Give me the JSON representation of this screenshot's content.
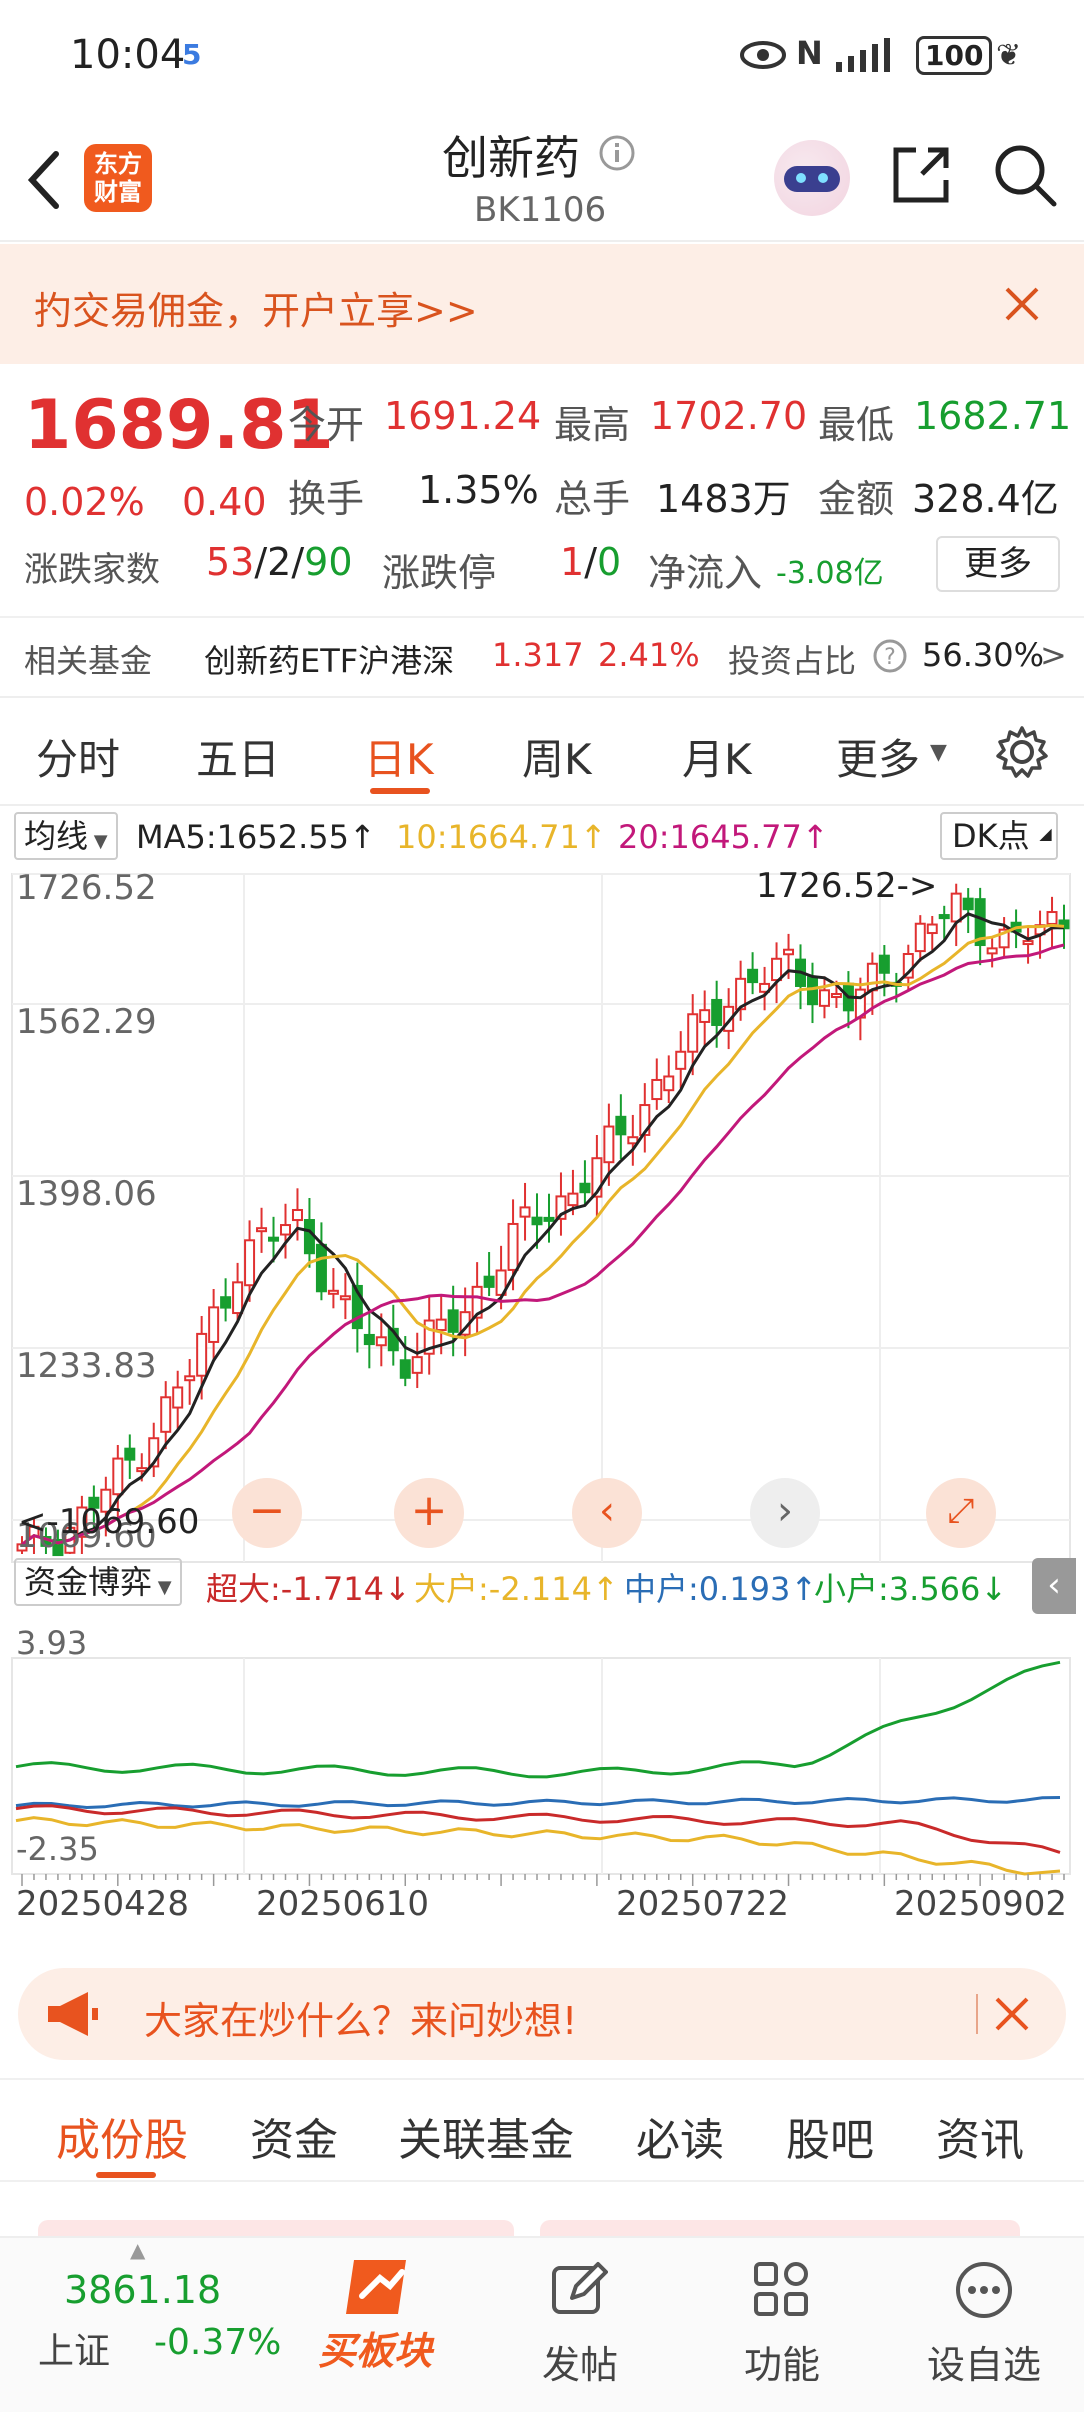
{
  "status_bar": {
    "time": "10:04",
    "battery": "100"
  },
  "header": {
    "logo_line1": "东方",
    "logo_line2": "财富",
    "title": "创新药",
    "code": "BK1106"
  },
  "banner": {
    "text": "扚交易佣金，开户立享>>"
  },
  "quote": {
    "price": "1689.81",
    "change_pct": "0.02%",
    "change": "0.40",
    "open_label": "今开",
    "open": "1691.24",
    "high_label": "最高",
    "high": "1702.70",
    "low_label": "最低",
    "low": "1682.71",
    "turnover_label": "换手",
    "turnover": "1.35%",
    "volume_label": "总手",
    "volume": "1483万",
    "amount_label": "金额",
    "amount": "328.4亿",
    "breadth_label": "涨跌家数",
    "up": "53",
    "sep1": "/",
    "flat": "2",
    "sep2": "/",
    "down": "90",
    "limit_label": "涨跌停",
    "limit_up": "1",
    "sep3": "/",
    "limit_down": "0",
    "inflow_label": "净流入",
    "inflow": "-3.08亿",
    "more_button": "更多",
    "fund_label": "相关基金",
    "fund_name": "创新药ETF沪港深",
    "fund_price": "1.317",
    "fund_pct": "2.41%",
    "ratio_label": "投资占比",
    "ratio": "56.30%",
    "ratio_arrow": ">"
  },
  "tabs": [
    "分时",
    "五日",
    "日K",
    "周K",
    "月K",
    "更多"
  ],
  "active_tab": 2,
  "chart": {
    "ma_select": "均线",
    "ma5": "MA5:1652.55↑",
    "ma10": "10:1664.71↑",
    "ma20": "20:1645.77↑",
    "dk_button": "DK点",
    "y_ticks": [
      "1726.52",
      "1562.29",
      "1398.06",
      "1233.83",
      "1069.60"
    ],
    "high_marker": "1726.52->",
    "low_marker": "<-1069.60",
    "flow_select": "资金博弈",
    "flow_super": "超大:-1.714↓",
    "flow_big": "大户:-2.114↑",
    "flow_mid": "中户:0.193↑",
    "flow_small": "小户:3.566↓",
    "flow_ticks": [
      "3.93",
      "-2.35"
    ],
    "dates": [
      "20250428",
      "20250610",
      "20250722",
      "20250902"
    ],
    "colors": {
      "up": "#e03131",
      "down": "#179e2f",
      "ma5": "#222222",
      "ma10": "#e8b52a",
      "ma20": "#c2187a",
      "mid": "#2a6db5"
    }
  },
  "chart_data": {
    "type": "candlestick",
    "title": "",
    "x": [
      "20250428",
      "20250610",
      "20250722",
      "20250902"
    ],
    "ylim": [
      1069.6,
      1726.52
    ],
    "close_trend": [
      1070,
      1100,
      1160,
      1240,
      1360,
      1395,
      1290,
      1260,
      1300,
      1380,
      1420,
      1480,
      1560,
      1620,
      1640,
      1600,
      1650,
      1700,
      1660,
      1689.81
    ],
    "series": [
      {
        "name": "MA5",
        "last": 1652.55
      },
      {
        "name": "10",
        "last": 1664.71
      },
      {
        "name": "20",
        "last": 1645.77
      }
    ]
  },
  "ask": {
    "text": "大家在炒什么？来问妙想!"
  },
  "subtabs": [
    "成份股",
    "资金",
    "关联基金",
    "必读",
    "股吧",
    "资讯"
  ],
  "active_subtab": 0,
  "bottom_nav": {
    "index_value": "3861.18",
    "index_name": "上证",
    "index_change": "-0.37%",
    "buy_label": "买板块",
    "post_label": "发帖",
    "func_label": "功能",
    "watch_label": "设自选"
  }
}
